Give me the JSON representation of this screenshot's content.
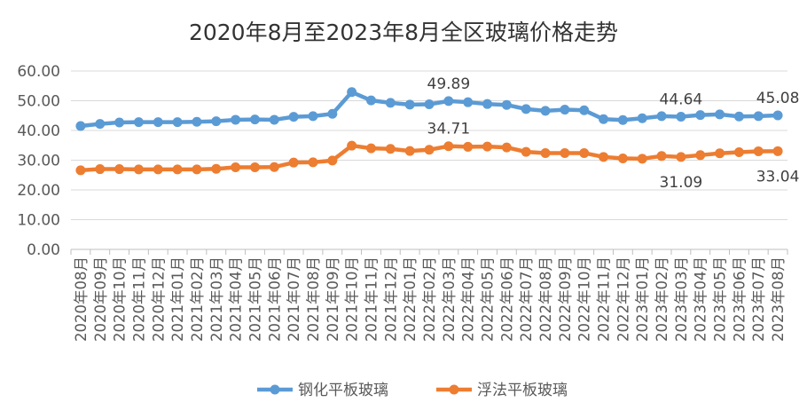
{
  "chart_data": {
    "type": "line",
    "title": "2020年8月至2023年8月全区玻璃价格走势",
    "xlabel": "",
    "ylabel": "",
    "ylim": [
      0,
      60
    ],
    "yticks": [
      "0.00",
      "10.00",
      "20.00",
      "30.00",
      "40.00",
      "50.00",
      "60.00"
    ],
    "grid": true,
    "legend_position": "bottom",
    "categories": [
      "2020年08月",
      "2020年09月",
      "2020年10月",
      "2020年11月",
      "2020年12月",
      "2021年01月",
      "2021年02月",
      "2021年03月",
      "2021年04月",
      "2021年05月",
      "2021年06月",
      "2021年07月",
      "2021年08月",
      "2021年09月",
      "2021年10月",
      "2021年11月",
      "2021年12月",
      "2022年01月",
      "2022年02月",
      "2022年03月",
      "2022年04月",
      "2022年05月",
      "2022年06月",
      "2022年07月",
      "2022年08月",
      "2022年09月",
      "2022年10月",
      "2022年11月",
      "2022年12月",
      "2023年01月",
      "2023年02月",
      "2023年03月",
      "2023年04月",
      "2023年05月",
      "2023年06月",
      "2023年07月",
      "2023年08月"
    ],
    "series": [
      {
        "name": "钢化平板玻璃",
        "color": "#5B9BD5",
        "values": [
          41.5,
          42.2,
          42.7,
          42.8,
          42.8,
          42.8,
          42.9,
          43.1,
          43.6,
          43.7,
          43.6,
          44.6,
          44.8,
          45.6,
          52.9,
          50.1,
          49.3,
          48.7,
          48.8,
          49.89,
          49.5,
          48.9,
          48.6,
          47.2,
          46.6,
          47.0,
          46.8,
          43.8,
          43.5,
          44.1,
          44.8,
          44.64,
          45.2,
          45.4,
          44.7,
          44.8,
          45.08
        ]
      },
      {
        "name": "浮法平板玻璃",
        "color": "#ED7D31",
        "values": [
          26.6,
          27.0,
          27.0,
          26.9,
          26.9,
          26.9,
          26.9,
          27.1,
          27.6,
          27.6,
          27.7,
          29.2,
          29.3,
          29.9,
          34.9,
          34.0,
          33.8,
          33.1,
          33.5,
          34.71,
          34.5,
          34.6,
          34.3,
          32.8,
          32.4,
          32.4,
          32.4,
          31.1,
          30.6,
          30.5,
          31.4,
          31.09,
          31.7,
          32.3,
          32.7,
          33.0,
          33.04
        ]
      }
    ],
    "data_labels": [
      {
        "series": 0,
        "index": 19,
        "text": "49.89",
        "place": "above"
      },
      {
        "series": 0,
        "index": 31,
        "text": "44.64",
        "place": "above"
      },
      {
        "series": 0,
        "index": 36,
        "text": "45.08",
        "place": "above"
      },
      {
        "series": 1,
        "index": 19,
        "text": "34.71",
        "place": "above"
      },
      {
        "series": 1,
        "index": 31,
        "text": "31.09",
        "place": "below"
      },
      {
        "series": 1,
        "index": 36,
        "text": "33.04",
        "place": "below"
      }
    ]
  }
}
